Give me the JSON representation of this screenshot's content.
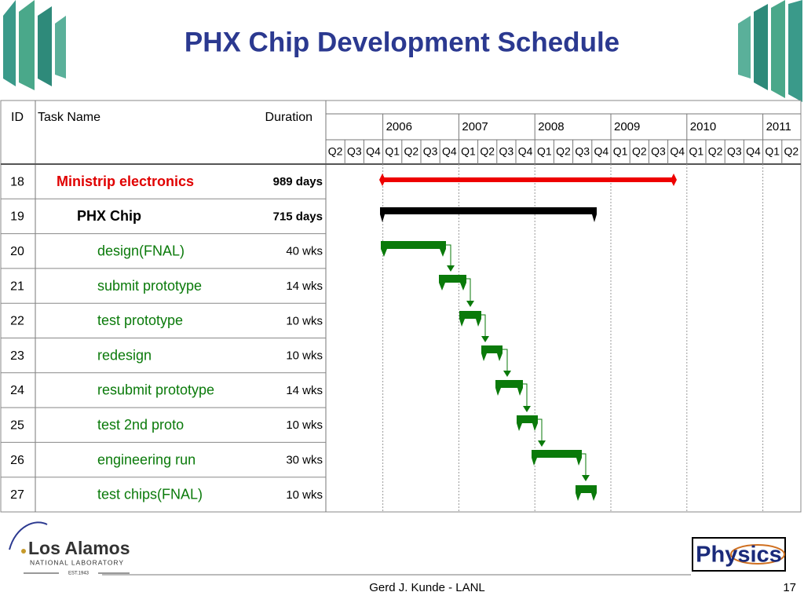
{
  "header": {
    "title": "PHX Chip Development Schedule"
  },
  "table": {
    "columns": [
      "ID",
      "Task Name",
      "Duration"
    ],
    "years": [
      "2006",
      "2007",
      "2008",
      "2009",
      "2010",
      "2011"
    ],
    "quarters": [
      "Q2",
      "Q3",
      "Q4",
      "Q1",
      "Q2",
      "Q3",
      "Q4",
      "Q1",
      "Q2",
      "Q3",
      "Q4",
      "Q1",
      "Q2",
      "Q3",
      "Q4",
      "Q1",
      "Q2",
      "Q3",
      "Q4",
      "Q1",
      "Q2",
      "Q3",
      "Q4",
      "Q1",
      "Q2"
    ],
    "rows": [
      [
        "18",
        "Ministrip electronics",
        "989 days"
      ],
      [
        "19",
        "PHX Chip",
        "715 days"
      ],
      [
        "20",
        "design(FNAL)",
        "40 wks"
      ],
      [
        "21",
        "submit prototype",
        "14 wks"
      ],
      [
        "22",
        "test prototype",
        "10 wks"
      ],
      [
        "23",
        "redesign",
        "10 wks"
      ],
      [
        "24",
        "resubmit prototype",
        "14 wks"
      ],
      [
        "25",
        "test 2nd proto",
        "10 wks"
      ],
      [
        "26",
        "engineering run",
        "30 wks"
      ],
      [
        "27",
        "test chips(FNAL)",
        "10 wks"
      ]
    ]
  },
  "logos": {
    "lab_name": "Los Alamos",
    "lab_subtitle": "NATIONAL LABORATORY",
    "lab_established": "EST.1943",
    "physics": "Physics"
  },
  "footer": {
    "presenter": "Gerd J. Kunde - LANL",
    "page": "17"
  }
}
